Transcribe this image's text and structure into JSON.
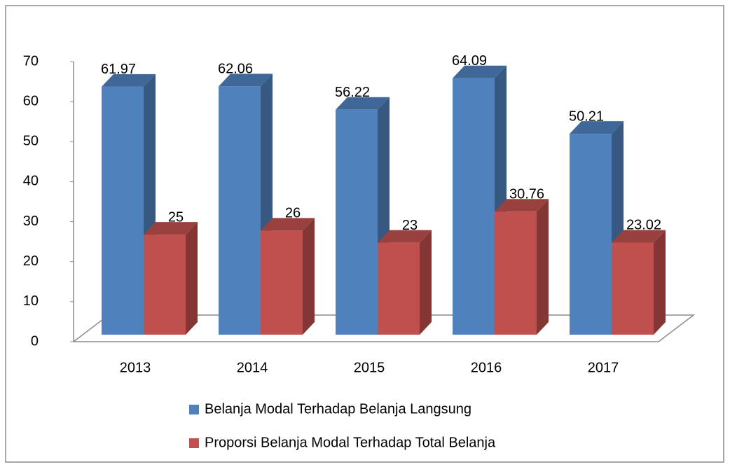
{
  "chart_data": {
    "type": "bar3d",
    "categories": [
      "2013",
      "2014",
      "2015",
      "2016",
      "2017"
    ],
    "series": [
      {
        "name": "Belanja Modal Terhadap Belanja Langsung",
        "color": "#4f81bd",
        "values": [
          61.97,
          62.06,
          56.22,
          64.09,
          50.21
        ]
      },
      {
        "name": "Proporsi Belanja Modal Terhadap Total Belanja",
        "color": "#c0504d",
        "values": [
          25,
          26,
          23,
          30.76,
          23.02
        ]
      }
    ],
    "ylim": [
      0,
      70
    ],
    "yticks": [
      0,
      10,
      20,
      30,
      40,
      50,
      60,
      70
    ],
    "legend": "bottom"
  }
}
